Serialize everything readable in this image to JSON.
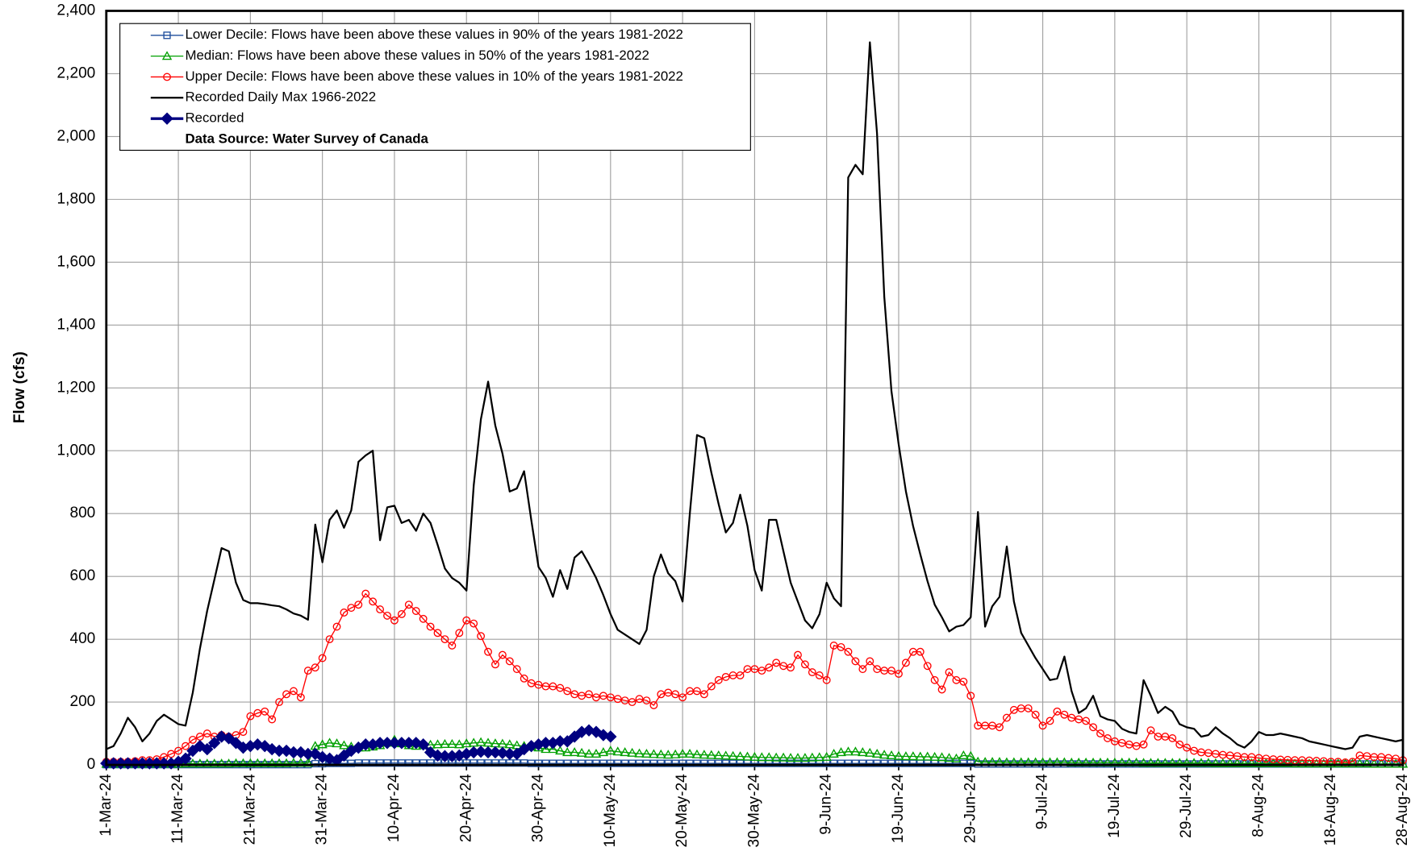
{
  "chart_data": {
    "type": "line",
    "y_label": "Flow (cfs)",
    "note": "Data Source: Water Survey of Canada",
    "legend": "upper left",
    "grid": true,
    "ylim": [
      0,
      2400
    ],
    "yticks": [
      0,
      200,
      400,
      600,
      800,
      {
        "value": 1000,
        "label": "1,000"
      },
      {
        "value": 1200,
        "label": "1,200"
      },
      {
        "value": 1400,
        "label": "1,400"
      },
      {
        "value": 1600,
        "label": "1,600"
      },
      {
        "value": 1800,
        "label": "1,800"
      },
      {
        "value": 2000,
        "label": "2,000"
      },
      {
        "value": 2200,
        "label": "2,200"
      },
      {
        "value": 2400,
        "label": "2,400"
      }
    ],
    "xlim": [
      "1-Mar-24",
      "28-Aug-24"
    ],
    "xticks": [
      "1-Mar-24",
      "11-Mar-24",
      "21-Mar-24",
      "31-Mar-24",
      "10-Apr-24",
      "20-Apr-24",
      "30-Apr-24",
      "10-May-24",
      "20-May-24",
      "30-May-24",
      "9-Jun-24",
      "19-Jun-24",
      "29-Jun-24",
      "9-Jul-24",
      "19-Jul-24",
      "29-Jul-24",
      "8-Aug-24",
      "18-Aug-24",
      "28-Aug-24"
    ],
    "x": [
      "1-Mar-24",
      "2-Mar-24",
      "3-Mar-24",
      "4-Mar-24",
      "5-Mar-24",
      "6-Mar-24",
      "7-Mar-24",
      "8-Mar-24",
      "9-Mar-24",
      "10-Mar-24",
      "11-Mar-24",
      "12-Mar-24",
      "13-Mar-24",
      "14-Mar-24",
      "15-Mar-24",
      "16-Mar-24",
      "17-Mar-24",
      "18-Mar-24",
      "19-Mar-24",
      "20-Mar-24",
      "21-Mar-24",
      "22-Mar-24",
      "23-Mar-24",
      "24-Mar-24",
      "25-Mar-24",
      "26-Mar-24",
      "27-Mar-24",
      "28-Mar-24",
      "29-Mar-24",
      "30-Mar-24",
      "31-Mar-24",
      "1-Apr-24",
      "2-Apr-24",
      "3-Apr-24",
      "4-Apr-24",
      "5-Apr-24",
      "6-Apr-24",
      "7-Apr-24",
      "8-Apr-24",
      "9-Apr-24",
      "10-Apr-24",
      "11-Apr-24",
      "12-Apr-24",
      "13-Apr-24",
      "14-Apr-24",
      "15-Apr-24",
      "16-Apr-24",
      "17-Apr-24",
      "18-Apr-24",
      "19-Apr-24",
      "20-Apr-24",
      "21-Apr-24",
      "22-Apr-24",
      "23-Apr-24",
      "24-Apr-24",
      "25-Apr-24",
      "26-Apr-24",
      "27-Apr-24",
      "28-Apr-24",
      "29-Apr-24",
      "30-Apr-24",
      "1-May-24",
      "2-May-24",
      "3-May-24",
      "4-May-24",
      "5-May-24",
      "6-May-24",
      "7-May-24",
      "8-May-24",
      "9-May-24",
      "10-May-24",
      "11-May-24",
      "12-May-24",
      "13-May-24",
      "14-May-24",
      "15-May-24",
      "16-May-24",
      "17-May-24",
      "18-May-24",
      "19-May-24",
      "20-May-24",
      "21-May-24",
      "22-May-24",
      "23-May-24",
      "24-May-24",
      "25-May-24",
      "26-May-24",
      "27-May-24",
      "28-May-24",
      "29-May-24",
      "30-May-24",
      "31-May-24",
      "1-Jun-24",
      "2-Jun-24",
      "3-Jun-24",
      "4-Jun-24",
      "5-Jun-24",
      "6-Jun-24",
      "7-Jun-24",
      "8-Jun-24",
      "9-Jun-24",
      "10-Jun-24",
      "11-Jun-24",
      "12-Jun-24",
      "13-Jun-24",
      "14-Jun-24",
      "15-Jun-24",
      "16-Jun-24",
      "17-Jun-24",
      "18-Jun-24",
      "19-Jun-24",
      "20-Jun-24",
      "21-Jun-24",
      "22-Jun-24",
      "23-Jun-24",
      "24-Jun-24",
      "25-Jun-24",
      "26-Jun-24",
      "27-Jun-24",
      "28-Jun-24",
      "29-Jun-24",
      "30-Jun-24",
      "1-Jul-24",
      "2-Jul-24",
      "3-Jul-24",
      "4-Jul-24",
      "5-Jul-24",
      "6-Jul-24",
      "7-Jul-24",
      "8-Jul-24",
      "9-Jul-24",
      "10-Jul-24",
      "11-Jul-24",
      "12-Jul-24",
      "13-Jul-24",
      "14-Jul-24",
      "15-Jul-24",
      "16-Jul-24",
      "17-Jul-24",
      "18-Jul-24",
      "19-Jul-24",
      "20-Jul-24",
      "21-Jul-24",
      "22-Jul-24",
      "23-Jul-24",
      "24-Jul-24",
      "25-Jul-24",
      "26-Jul-24",
      "27-Jul-24",
      "28-Jul-24",
      "29-Jul-24",
      "30-Jul-24",
      "31-Jul-24",
      "1-Aug-24",
      "2-Aug-24",
      "3-Aug-24",
      "4-Aug-24",
      "5-Aug-24",
      "6-Aug-24",
      "7-Aug-24",
      "8-Aug-24",
      "9-Aug-24",
      "10-Aug-24",
      "11-Aug-24",
      "12-Aug-24",
      "13-Aug-24",
      "14-Aug-24",
      "15-Aug-24",
      "16-Aug-24",
      "17-Aug-24",
      "18-Aug-24",
      "19-Aug-24",
      "20-Aug-24",
      "21-Aug-24",
      "22-Aug-24",
      "23-Aug-24",
      "24-Aug-24",
      "25-Aug-24",
      "26-Aug-24",
      "27-Aug-24",
      "28-Aug-24"
    ],
    "series": [
      {
        "name": "Lower Decile: Flows have been above these values in 90% of the years 1981-2022",
        "color": "#1f4e9c",
        "marker": "square",
        "width": 1.2,
        "values": [
          1,
          1,
          1,
          1,
          1,
          1,
          1,
          1,
          1,
          1,
          1,
          1,
          1,
          1,
          1,
          1,
          1,
          1,
          1,
          1,
          1,
          1,
          1,
          1,
          1,
          1,
          1,
          1,
          1,
          4,
          4,
          5,
          5,
          5,
          5,
          6,
          6,
          6,
          6,
          6,
          6,
          6,
          6,
          6,
          6,
          6,
          6,
          6,
          6,
          6,
          6,
          6,
          6,
          6,
          6,
          6,
          6,
          6,
          6,
          5,
          5,
          5,
          5,
          5,
          5,
          5,
          5,
          5,
          5,
          5,
          5,
          5,
          5,
          5,
          5,
          5,
          5,
          5,
          5,
          5,
          5,
          5,
          5,
          5,
          5,
          5,
          5,
          5,
          5,
          5,
          5,
          5,
          5,
          5,
          5,
          5,
          5,
          5,
          5,
          5,
          5,
          5,
          5,
          5,
          5,
          5,
          5,
          5,
          5,
          5,
          5,
          5,
          5,
          5,
          5,
          5,
          5,
          5,
          5,
          5,
          5,
          3,
          3,
          3,
          3,
          3,
          3,
          3,
          3,
          3,
          3,
          3,
          3,
          3,
          3,
          3,
          3,
          3,
          3,
          3,
          3,
          3,
          3,
          3,
          3,
          3,
          3,
          3,
          3,
          3,
          3,
          3,
          3,
          3,
          3,
          3,
          3,
          3,
          3,
          3,
          3,
          3,
          3,
          3,
          3,
          3,
          3,
          3,
          3,
          3,
          3,
          3,
          3,
          3,
          3,
          3,
          3,
          3,
          3,
          3,
          3
        ]
      },
      {
        "name": "Median: Flows have been above these values in 50% of the years 1981-2022",
        "color": "#00a000",
        "marker": "triangle",
        "width": 1.2,
        "values": [
          3,
          3,
          3,
          3,
          3,
          3,
          3,
          3,
          3,
          3,
          3,
          4,
          4,
          4,
          4,
          4,
          4,
          4,
          5,
          5,
          5,
          5,
          5,
          5,
          5,
          5,
          6,
          6,
          6,
          60,
          65,
          70,
          68,
          62,
          58,
          55,
          55,
          58,
          62,
          70,
          80,
          68,
          62,
          60,
          62,
          64,
          65,
          66,
          66,
          65,
          68,
          70,
          72,
          70,
          68,
          67,
          65,
          62,
          60,
          58,
          55,
          50,
          50,
          45,
          40,
          40,
          38,
          35,
          35,
          40,
          45,
          42,
          40,
          38,
          36,
          35,
          34,
          33,
          32,
          33,
          35,
          35,
          33,
          32,
          31,
          30,
          29,
          28,
          27,
          26,
          25,
          24,
          24,
          23,
          23,
          22,
          22,
          22,
          23,
          24,
          25,
          35,
          40,
          42,
          42,
          40,
          38,
          35,
          32,
          30,
          28,
          27,
          27,
          26,
          26,
          25,
          24,
          22,
          20,
          30,
          28,
          10,
          9,
          9,
          9,
          8,
          8,
          8,
          8,
          8,
          8,
          8,
          8,
          8,
          7,
          7,
          7,
          7,
          7,
          7,
          7,
          7,
          7,
          7,
          6,
          6,
          6,
          6,
          6,
          6,
          6,
          6,
          6,
          6,
          5,
          5,
          5,
          5,
          5,
          5,
          5,
          5,
          5,
          5,
          5,
          4,
          4,
          4,
          4,
          4,
          4,
          4,
          4,
          4,
          4,
          4,
          3,
          3,
          3,
          3,
          3
        ]
      },
      {
        "name": "Upper Decile: Flows have been above these values in 10% of the years 1981-2022",
        "color": "#ff0000",
        "marker": "circle",
        "width": 1.2,
        "values": [
          10,
          10,
          10,
          10,
          12,
          15,
          15,
          18,
          25,
          35,
          45,
          60,
          80,
          90,
          100,
          90,
          95,
          90,
          95,
          105,
          155,
          165,
          170,
          145,
          200,
          225,
          235,
          215,
          300,
          310,
          340,
          400,
          440,
          485,
          500,
          510,
          545,
          520,
          495,
          475,
          460,
          480,
          510,
          490,
          465,
          440,
          420,
          400,
          380,
          420,
          460,
          450,
          410,
          360,
          320,
          350,
          330,
          305,
          275,
          260,
          255,
          250,
          250,
          245,
          235,
          225,
          220,
          225,
          215,
          220,
          215,
          210,
          205,
          200,
          210,
          205,
          190,
          225,
          230,
          225,
          215,
          235,
          235,
          225,
          250,
          270,
          280,
          285,
          285,
          305,
          305,
          300,
          310,
          325,
          315,
          310,
          350,
          320,
          295,
          285,
          270,
          380,
          375,
          360,
          330,
          305,
          330,
          305,
          300,
          300,
          290,
          325,
          360,
          360,
          315,
          270,
          240,
          295,
          270,
          265,
          220,
          125,
          125,
          125,
          120,
          150,
          175,
          180,
          180,
          160,
          125,
          140,
          170,
          160,
          150,
          145,
          140,
          120,
          100,
          85,
          75,
          70,
          65,
          60,
          65,
          110,
          90,
          90,
          85,
          65,
          55,
          45,
          40,
          38,
          35,
          32,
          30,
          28,
          25,
          25,
          22,
          20,
          18,
          17,
          16,
          15,
          15,
          14,
          13,
          12,
          10,
          10,
          8,
          10,
          30,
          28,
          25,
          25,
          22,
          20,
          15
        ]
      },
      {
        "name": "Recorded Daily Max 1966-2022",
        "color": "#000000",
        "marker": "none",
        "width": 2,
        "values": [
          50,
          60,
          100,
          150,
          120,
          75,
          100,
          140,
          160,
          145,
          130,
          125,
          230,
          370,
          490,
          590,
          690,
          680,
          580,
          525,
          515,
          515,
          512,
          508,
          505,
          495,
          482,
          475,
          462,
          765,
          645,
          780,
          810,
          755,
          810,
          965,
          985,
          1000,
          715,
          820,
          825,
          770,
          780,
          745,
          800,
          770,
          700,
          625,
          595,
          580,
          555,
          890,
          1100,
          1220,
          1080,
          990,
          870,
          880,
          935,
          780,
          630,
          595,
          535,
          620,
          560,
          660,
          680,
          640,
          595,
          540,
          480,
          430,
          415,
          400,
          385,
          430,
          600,
          670,
          610,
          585,
          520,
          800,
          1050,
          1040,
          930,
          830,
          740,
          770,
          860,
          760,
          620,
          555,
          780,
          780,
          680,
          580,
          520,
          460,
          435,
          480,
          580,
          530,
          505,
          1870,
          1910,
          1880,
          2300,
          2010,
          1490,
          1190,
          1020,
          870,
          760,
          670,
          585,
          510,
          470,
          425,
          440,
          445,
          470,
          805,
          440,
          505,
          535,
          695,
          520,
          420,
          380,
          340,
          305,
          270,
          275,
          345,
          235,
          165,
          180,
          220,
          155,
          145,
          140,
          115,
          105,
          100,
          270,
          220,
          165,
          185,
          170,
          130,
          120,
          115,
          90,
          95,
          120,
          100,
          85,
          65,
          55,
          75,
          105,
          95,
          95,
          100,
          95,
          90,
          85,
          75,
          70,
          65,
          60,
          55,
          50,
          55,
          90,
          95,
          90,
          85,
          80,
          75,
          80
        ]
      },
      {
        "name": "Recorded",
        "color": "#000080",
        "marker": "diamond",
        "width": 3.5,
        "values": [
          5,
          5,
          5,
          5,
          5,
          5,
          5,
          5,
          5,
          5,
          10,
          20,
          45,
          60,
          50,
          70,
          90,
          85,
          70,
          55,
          60,
          65,
          60,
          50,
          45,
          45,
          40,
          40,
          35,
          35,
          25,
          20,
          15,
          30,
          45,
          55,
          65,
          65,
          70,
          70,
          70,
          70,
          70,
          70,
          65,
          40,
          30,
          28,
          28,
          30,
          35,
          40,
          42,
          40,
          40,
          38,
          35,
          35,
          50,
          60,
          65,
          70,
          70,
          75,
          75,
          90,
          105,
          110,
          105,
          95,
          90,
          null,
          null,
          null,
          null,
          null,
          null,
          null,
          null,
          null,
          null,
          null,
          null,
          null,
          null,
          null,
          null,
          null,
          null,
          null,
          null,
          null,
          null,
          null,
          null,
          null,
          null,
          null,
          null,
          null,
          null,
          null,
          null,
          null,
          null,
          null,
          null,
          null,
          null,
          null,
          null,
          null,
          null,
          null,
          null,
          null,
          null,
          null,
          null,
          null,
          null,
          null,
          null,
          null,
          null,
          null,
          null,
          null,
          null,
          null,
          null,
          null,
          null,
          null,
          null,
          null,
          null,
          null,
          null,
          null,
          null,
          null,
          null,
          null,
          null,
          null,
          null,
          null,
          null,
          null,
          null,
          null,
          null,
          null,
          null,
          null,
          null,
          null,
          null,
          null,
          null,
          null,
          null,
          null,
          null,
          null,
          null,
          null,
          null,
          null,
          null,
          null,
          null,
          null,
          null,
          null,
          null,
          null,
          null,
          null,
          null
        ]
      }
    ]
  }
}
